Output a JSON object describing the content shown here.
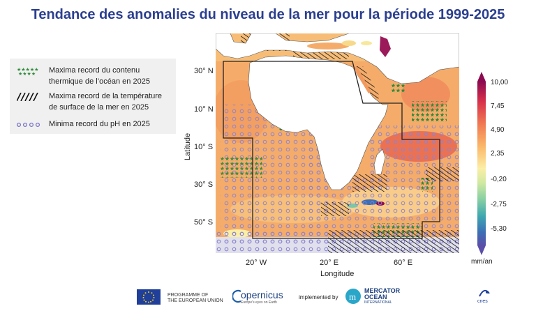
{
  "title": "Tendance des anomalies du niveau de la mer pour la période 1999-2025",
  "legend": {
    "items": [
      {
        "symbol": "green-stars",
        "lines": [
          "Maxima record du contenu",
          "thermique de l’océan en 2025"
        ]
      },
      {
        "symbol": "black-hatch",
        "lines": [
          "Maxima record de la température",
          "de surface de la mer en 2025"
        ]
      },
      {
        "symbol": "blue-circles",
        "lines": [
          "Minima record du pH en 2025"
        ]
      }
    ]
  },
  "map": {
    "ylabel": "Latitude",
    "xlabel": "Longitude",
    "lat_ticks": [
      "30° N",
      "10° N",
      "10° S",
      "30° S",
      "50° S"
    ],
    "lon_ticks": [
      "20° W",
      "20° E",
      "60° E"
    ]
  },
  "colorbar": {
    "ticks": [
      "10,00",
      "7,45",
      "4,90",
      "2,35",
      "-0,20",
      "-2,75",
      "-5,30"
    ],
    "unit": "mm/an",
    "range": [
      -7.85,
      10.0
    ]
  },
  "footer": {
    "programme": [
      "PROGRAMME OF",
      "THE EUROPEAN UNION"
    ],
    "copernicus": "opernicus",
    "copernicus_tagline": "Europe's eyes on Earth",
    "implemented_by": "implemented by",
    "mercator": [
      "MERCATOR",
      "OCEAN"
    ],
    "mercator_sub": "INTERNATIONAL",
    "cnes": "cnes"
  },
  "colors": {
    "title": "#2b3f8f",
    "high": "#8b0a50",
    "low": "#5b4ea8",
    "stars": "#2e8b3a",
    "circles": "#7b74c9"
  }
}
